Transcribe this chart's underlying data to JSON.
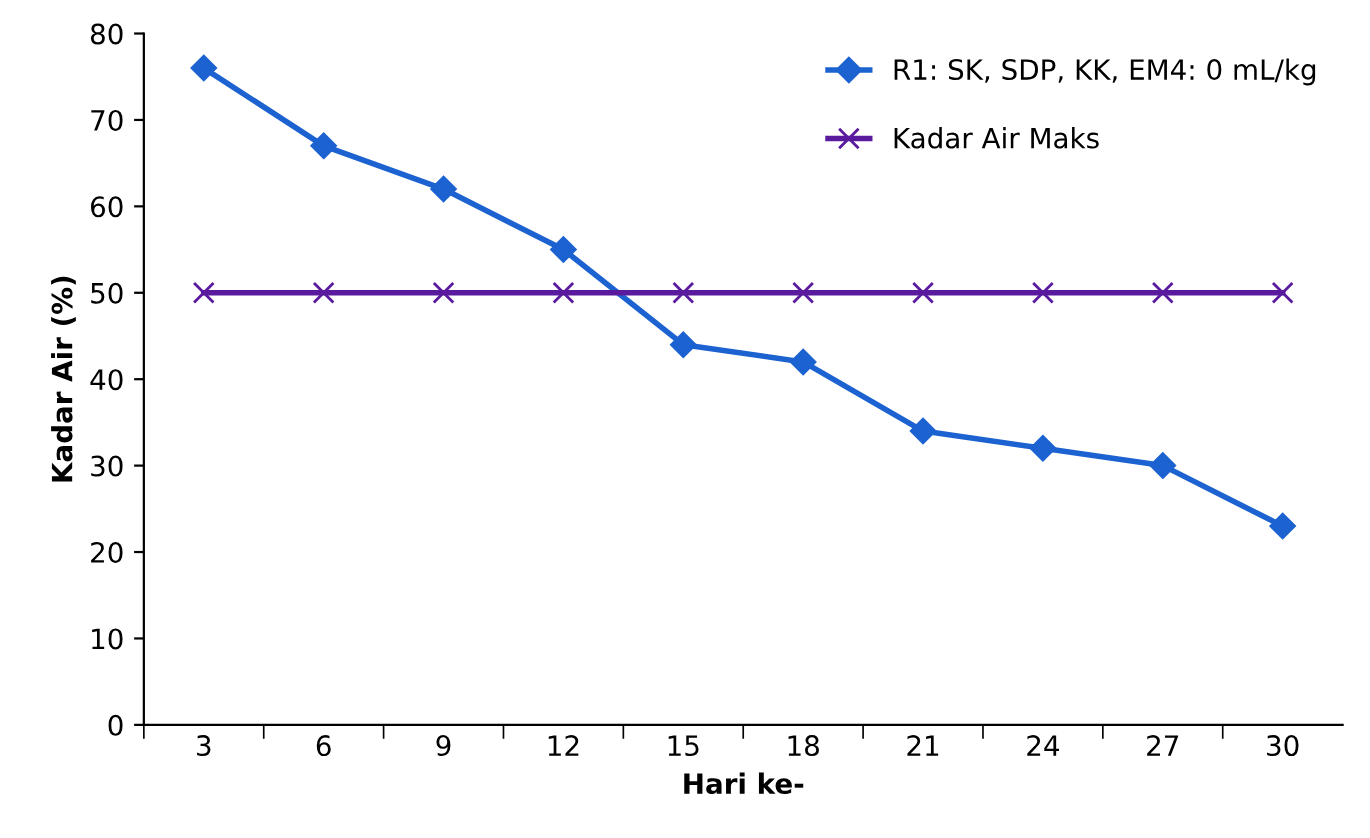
{
  "chart_data": {
    "type": "line",
    "xlabel": "Hari ke-",
    "ylabel": "Kadar Air (%)",
    "categories": [
      "3",
      "6",
      "9",
      "12",
      "15",
      "18",
      "21",
      "24",
      "27",
      "30"
    ],
    "series": [
      {
        "name": "R1: SK, SDP, KK, EM4: 0 mL/kg",
        "color": "#1c62d1",
        "marker": "diamond",
        "values": [
          76,
          67,
          62,
          55,
          44,
          42,
          34,
          32,
          30,
          23
        ]
      },
      {
        "name": "Kadar Air Maks",
        "color": "#5a1a9e",
        "marker": "cross",
        "values": [
          50,
          50,
          50,
          50,
          50,
          50,
          50,
          50,
          50,
          50
        ]
      }
    ],
    "ylim": [
      0,
      80
    ],
    "yticks": [
      0,
      10,
      20,
      30,
      40,
      50,
      60,
      70,
      80
    ],
    "grid": false,
    "legend": "top right",
    "line_style": "solid"
  }
}
